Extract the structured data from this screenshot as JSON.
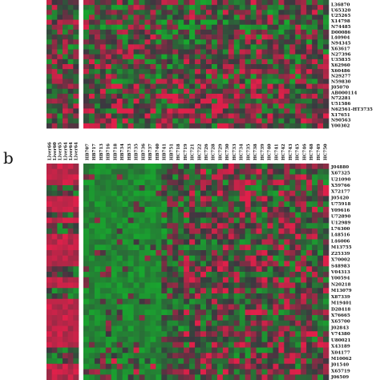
{
  "chart_data": [
    {
      "type": "heatmap",
      "panel_label": "",
      "colors": {
        "low": "#18a82e",
        "mid": "#3a3840",
        "high": "#e0204a"
      },
      "row_labels": [
        "L36870",
        "U65320",
        "U25265",
        "X14798",
        "N74485",
        "D00086",
        "L40904",
        "N94345",
        "X63617",
        "N27396",
        "U35835",
        "X62960",
        "X60486",
        "N29277",
        "N59830",
        "J05070",
        "AB000114",
        "N72281",
        "U51586",
        "N62561-HT3735",
        "X17651",
        "N90563",
        "Y00302"
      ],
      "sample_labels": []
    },
    {
      "type": "heatmap",
      "panel_label": "b",
      "colors": {
        "low": "#18a82e",
        "mid": "#3a3840",
        "high": "#e0204a"
      },
      "left_sample_labels": [
        "Liver66",
        "Liver60",
        "Liver65",
        "Liver64",
        "Liver64",
        "Liver64"
      ],
      "sample_labels": [
        "HB707",
        "HB717",
        "HB713",
        "HB716",
        "HB718",
        "HB734",
        "HB733",
        "HB735",
        "HB736",
        "HB737",
        "HB740",
        "HB741",
        "HB751",
        "HC718",
        "HC719",
        "HC721",
        "HC722",
        "HC726",
        "HC728",
        "HC729",
        "HC730",
        "HC733",
        "HC734",
        "HC735",
        "HC738",
        "HC739",
        "HC740",
        "HC741",
        "HC742",
        "HC743",
        "HC745",
        "HC746",
        "HC748",
        "HC749",
        "HC750"
      ],
      "row_labels": [
        "J04880",
        "X67325",
        "U21090",
        "X59766",
        "X72177",
        "J05420",
        "U75918",
        "Y09616",
        "U72890",
        "U12989",
        "L76300",
        "L48516",
        "L46006",
        "M13755",
        "Z25339",
        "X70002",
        "S48983",
        "V04313",
        "Y00594",
        "N20218",
        "M13079",
        "X87339",
        "M19401",
        "D28418",
        "X76665",
        "X65700",
        "J02843",
        "V74380",
        "U80021",
        "X43189",
        "X04177",
        "M10062",
        "J01540",
        "X65719",
        "J06509"
      ]
    }
  ]
}
